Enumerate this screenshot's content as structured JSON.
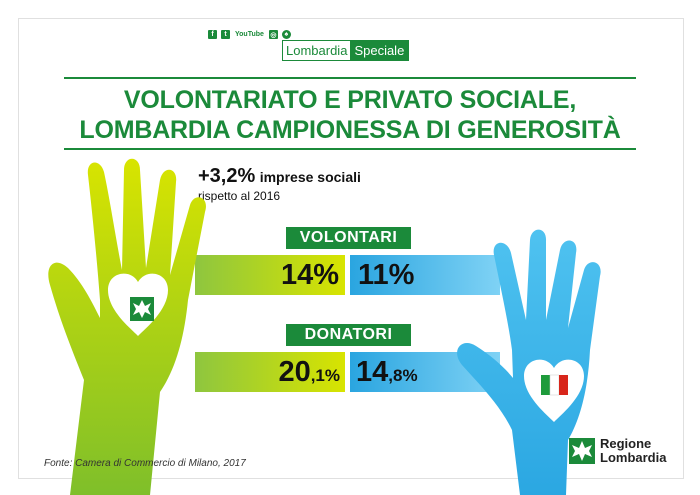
{
  "header": {
    "socials": {
      "facebook": "f",
      "twitter": "t",
      "youtube": "YouTube",
      "instagram": "◎",
      "other": "♠"
    },
    "logo_part1": "Lombardia",
    "logo_part2": "Speciale"
  },
  "title": {
    "line1": "VOLONTARIATO E PRIVATO SOCIALE,",
    "line2": "LOMBARDIA CAMPIONESSA DI GENEROSITÀ"
  },
  "headline": {
    "value": "+3,2%",
    "text": "imprese sociali",
    "sub": "rispetto al 2016"
  },
  "volontari": {
    "label": "VOLONTARI",
    "left": {
      "int": "14%"
    },
    "right": {
      "int": "11%"
    }
  },
  "donatori": {
    "label": "DONATORI",
    "left": {
      "int": "20",
      "dec": ",1%"
    },
    "right": {
      "int": "14",
      "dec": ",8%"
    }
  },
  "source": "Fonte: Camera di Commercio di Milano, 2017",
  "brand": {
    "line1": "Regione",
    "line2": "Lombardia"
  },
  "colors": {
    "green": "#1b8a3a",
    "lime": "#c9d800",
    "blue": "#3db8ea"
  }
}
